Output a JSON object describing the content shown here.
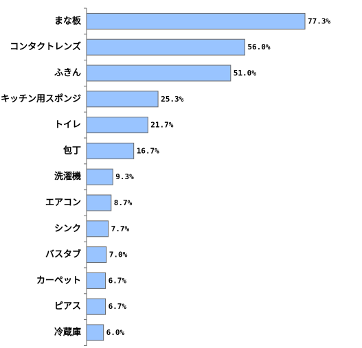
{
  "chart_data": {
    "type": "bar",
    "orientation": "horizontal",
    "categories": [
      "まな板",
      "コンタクトレンズ",
      "ふきん",
      "キッチン用スポンジ",
      "トイレ",
      "包丁",
      "洗濯機",
      "エアコン",
      "シンク",
      "バスタブ",
      "カーペット",
      "ピアス",
      "冷蔵庫"
    ],
    "values": [
      77.3,
      56.0,
      51.0,
      25.3,
      21.7,
      16.7,
      9.3,
      8.7,
      7.7,
      7.0,
      6.7,
      6.7,
      6.0
    ],
    "value_labels": [
      "77.3%",
      "56.0%",
      "51.0%",
      "25.3%",
      "21.7%",
      "16.7%",
      "9.3%",
      "8.7%",
      "7.7%",
      "7.0%",
      "6.7%",
      "6.7%",
      "6.0%"
    ],
    "xlim": [
      0,
      100
    ],
    "grid": false,
    "legend": "none",
    "bar_color": "#99c4ff",
    "bar_edge_color": "#666666"
  }
}
